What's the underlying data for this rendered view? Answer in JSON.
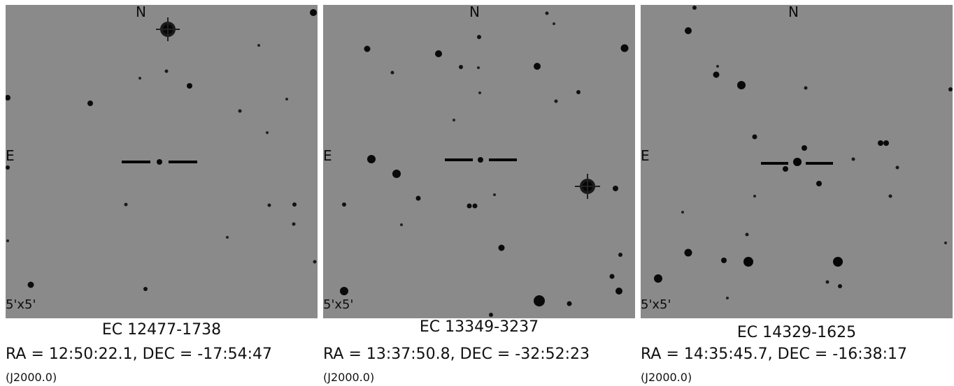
{
  "compass": {
    "north": "N",
    "east": "E"
  },
  "panels": [
    {
      "name": "EC 12477-1738",
      "coords": "RA = 12:50:22.1, DEC = -17:54:47",
      "epoch": "(J2000.0)",
      "field_size": "5'x5'"
    },
    {
      "name": "EC 13349-3237",
      "coords": "RA = 13:37:50.8, DEC = -32:52:23",
      "epoch": "(J2000.0)",
      "field_size": "5'x5'"
    },
    {
      "name": "EC 14329-1625",
      "coords": "RA = 14:35:45.7, DEC = -16:38:17",
      "epoch": "(J2000.0)",
      "field_size": "5'x5'"
    }
  ],
  "colors": {
    "sky": "#8a8a8a",
    "stars": "#0a0a0a",
    "marker": "#050505"
  }
}
